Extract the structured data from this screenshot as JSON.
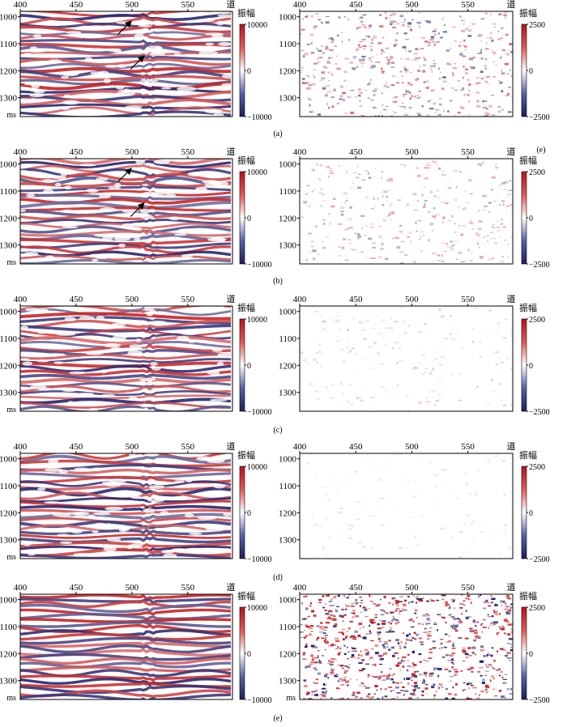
{
  "figure": {
    "panel_captions": [
      "(a)",
      "(b)",
      "(c)",
      "(d)",
      "(e)"
    ],
    "stray_label": "(e)"
  },
  "colors": {
    "red": "#c81e1e",
    "blue": "#24246e",
    "white": "#ffffff",
    "axis": "#000000"
  },
  "chart_data": [
    {
      "type": "heatmap",
      "panel": "(a)",
      "side": "left",
      "x_ticks": [
        400,
        450,
        500,
        550
      ],
      "x_unit": "道",
      "y_ticks": [
        1000,
        1100,
        1200,
        1300
      ],
      "y_unit": "ms",
      "colorbar": {
        "title": "振幅",
        "ticks": [
          "10000",
          "0",
          "−10000"
        ],
        "range": [
          -10000,
          10000
        ]
      },
      "arrows": 2,
      "texture": "reflectors"
    },
    {
      "type": "heatmap",
      "panel": "(a)",
      "side": "right",
      "x_ticks": [
        400,
        450,
        500,
        550
      ],
      "x_unit": "道",
      "y_ticks": [
        1000,
        1100,
        1200,
        1300
      ],
      "colorbar": {
        "title": "振幅",
        "ticks": [
          "2500",
          "0",
          "−2500"
        ],
        "range": [
          -2500,
          2500
        ]
      },
      "texture": "noise",
      "noise_level": 0.55
    },
    {
      "type": "heatmap",
      "panel": "(b)",
      "side": "left",
      "x_ticks": [
        400,
        450,
        500,
        550
      ],
      "x_unit": "道",
      "y_ticks": [
        1000,
        1100,
        1200,
        1300
      ],
      "y_unit": "ms",
      "colorbar": {
        "title": "振幅",
        "ticks": [
          "10000",
          "0",
          "−10000"
        ],
        "range": [
          -10000,
          10000
        ]
      },
      "arrows": 2,
      "texture": "reflectors"
    },
    {
      "type": "heatmap",
      "panel": "(b)",
      "side": "right",
      "x_ticks": [
        400,
        450,
        500,
        550
      ],
      "x_unit": "道",
      "y_ticks": [
        1000,
        1100,
        1200,
        1300
      ],
      "colorbar": {
        "title": "振幅",
        "ticks": [
          "2500",
          "0",
          "−2500"
        ],
        "range": [
          -2500,
          2500
        ]
      },
      "texture": "noise",
      "noise_level": 0.35
    },
    {
      "type": "heatmap",
      "panel": "(c)",
      "side": "left",
      "x_ticks": [
        400,
        450,
        500,
        550
      ],
      "x_unit": "道",
      "y_ticks": [
        1000,
        1100,
        1200,
        1300
      ],
      "y_unit": "ms",
      "colorbar": {
        "title": "振幅",
        "ticks": [
          "10000",
          "0",
          "−10000"
        ],
        "range": [
          -10000,
          10000
        ]
      },
      "texture": "reflectors"
    },
    {
      "type": "heatmap",
      "panel": "(c)",
      "side": "right",
      "x_ticks": [
        400,
        450,
        500,
        550
      ],
      "x_unit": "道",
      "y_ticks": [
        1000,
        1100,
        1200,
        1300
      ],
      "colorbar": {
        "title": "振幅",
        "ticks": [
          "2500",
          "0",
          "−2500"
        ],
        "range": [
          -2500,
          2500
        ]
      },
      "texture": "noise",
      "noise_level": 0.18
    },
    {
      "type": "heatmap",
      "panel": "(d)",
      "side": "left",
      "x_ticks": [
        400,
        450,
        500,
        550
      ],
      "x_unit": "道",
      "y_ticks": [
        1000,
        1100,
        1200,
        1300
      ],
      "y_unit": "ms",
      "colorbar": {
        "title": "振幅",
        "ticks": [
          "10000",
          "0",
          "−10000"
        ],
        "range": [
          -10000,
          10000
        ]
      },
      "texture": "reflectors"
    },
    {
      "type": "heatmap",
      "panel": "(d)",
      "side": "right",
      "x_ticks": [
        400,
        450,
        500,
        550
      ],
      "x_unit": "道",
      "y_ticks": [
        1000,
        1100,
        1200,
        1300
      ],
      "colorbar": {
        "title": "振幅",
        "ticks": [
          "2500",
          "0",
          "−2500"
        ],
        "range": [
          -2500,
          2500
        ]
      },
      "texture": "noise",
      "noise_level": 0.12
    },
    {
      "type": "heatmap",
      "panel": "(e)",
      "side": "left",
      "x_ticks": [
        400,
        450,
        500,
        550
      ],
      "x_unit": "道",
      "y_ticks": [
        1000,
        1100,
        1200,
        1300
      ],
      "y_unit": "ms",
      "colorbar": {
        "title": "振幅",
        "ticks": [
          "10000",
          "0",
          "−10000"
        ],
        "range": [
          -10000,
          10000
        ]
      },
      "texture": "reflectors_smooth"
    },
    {
      "type": "heatmap",
      "panel": "(e)",
      "side": "right",
      "x_ticks": [
        400,
        450,
        500,
        550
      ],
      "x_unit": "道",
      "y_ticks": [
        1000,
        1100,
        1200,
        1300
      ],
      "y_unit": "ms",
      "colorbar": {
        "title": "振幅",
        "ticks": [
          "2500",
          "0",
          "−2500"
        ],
        "range": [
          -2500,
          2500
        ]
      },
      "texture": "noise",
      "noise_level": 0.95
    }
  ]
}
